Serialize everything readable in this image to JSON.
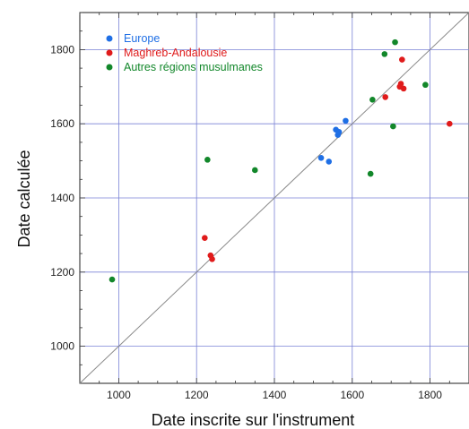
{
  "chart_data": {
    "type": "scatter",
    "title": "",
    "xlabel": "Date inscrite sur l'instrument",
    "ylabel": "Date calculée",
    "xlim": [
      900,
      1900
    ],
    "ylim": [
      900,
      1900
    ],
    "x_ticks": [
      1000,
      1200,
      1400,
      1600,
      1800
    ],
    "y_ticks": [
      1000,
      1200,
      1400,
      1600,
      1800
    ],
    "x_tick_labels": [
      "1000",
      "1200",
      "1400",
      "1600",
      "1800"
    ],
    "y_tick_labels": [
      "1000",
      "1200",
      "1400",
      "1600",
      "1800"
    ],
    "grid": true,
    "reference_line": "y = x",
    "legend_position": "top-left",
    "series": [
      {
        "name": "Europe",
        "color": "#1f6fe5",
        "points": [
          {
            "x": 1520,
            "y": 1508
          },
          {
            "x": 1540,
            "y": 1498
          },
          {
            "x": 1558,
            "y": 1584
          },
          {
            "x": 1563,
            "y": 1570
          },
          {
            "x": 1566,
            "y": 1578
          },
          {
            "x": 1583,
            "y": 1608
          }
        ]
      },
      {
        "name": "Maghreb-Andalousie",
        "color": "#e01b1b",
        "points": [
          {
            "x": 1221,
            "y": 1292
          },
          {
            "x": 1236,
            "y": 1245
          },
          {
            "x": 1240,
            "y": 1235
          },
          {
            "x": 1685,
            "y": 1672
          },
          {
            "x": 1722,
            "y": 1700
          },
          {
            "x": 1725,
            "y": 1708
          },
          {
            "x": 1728,
            "y": 1773
          },
          {
            "x": 1732,
            "y": 1695
          },
          {
            "x": 1850,
            "y": 1600
          }
        ]
      },
      {
        "name": "Autres régions musulmanes",
        "color": "#12872a",
        "points": [
          {
            "x": 983,
            "y": 1180
          },
          {
            "x": 1228,
            "y": 1503
          },
          {
            "x": 1350,
            "y": 1475
          },
          {
            "x": 1647,
            "y": 1465
          },
          {
            "x": 1652,
            "y": 1665
          },
          {
            "x": 1683,
            "y": 1788
          },
          {
            "x": 1705,
            "y": 1593
          },
          {
            "x": 1710,
            "y": 1820
          },
          {
            "x": 1788,
            "y": 1705
          }
        ]
      }
    ]
  }
}
